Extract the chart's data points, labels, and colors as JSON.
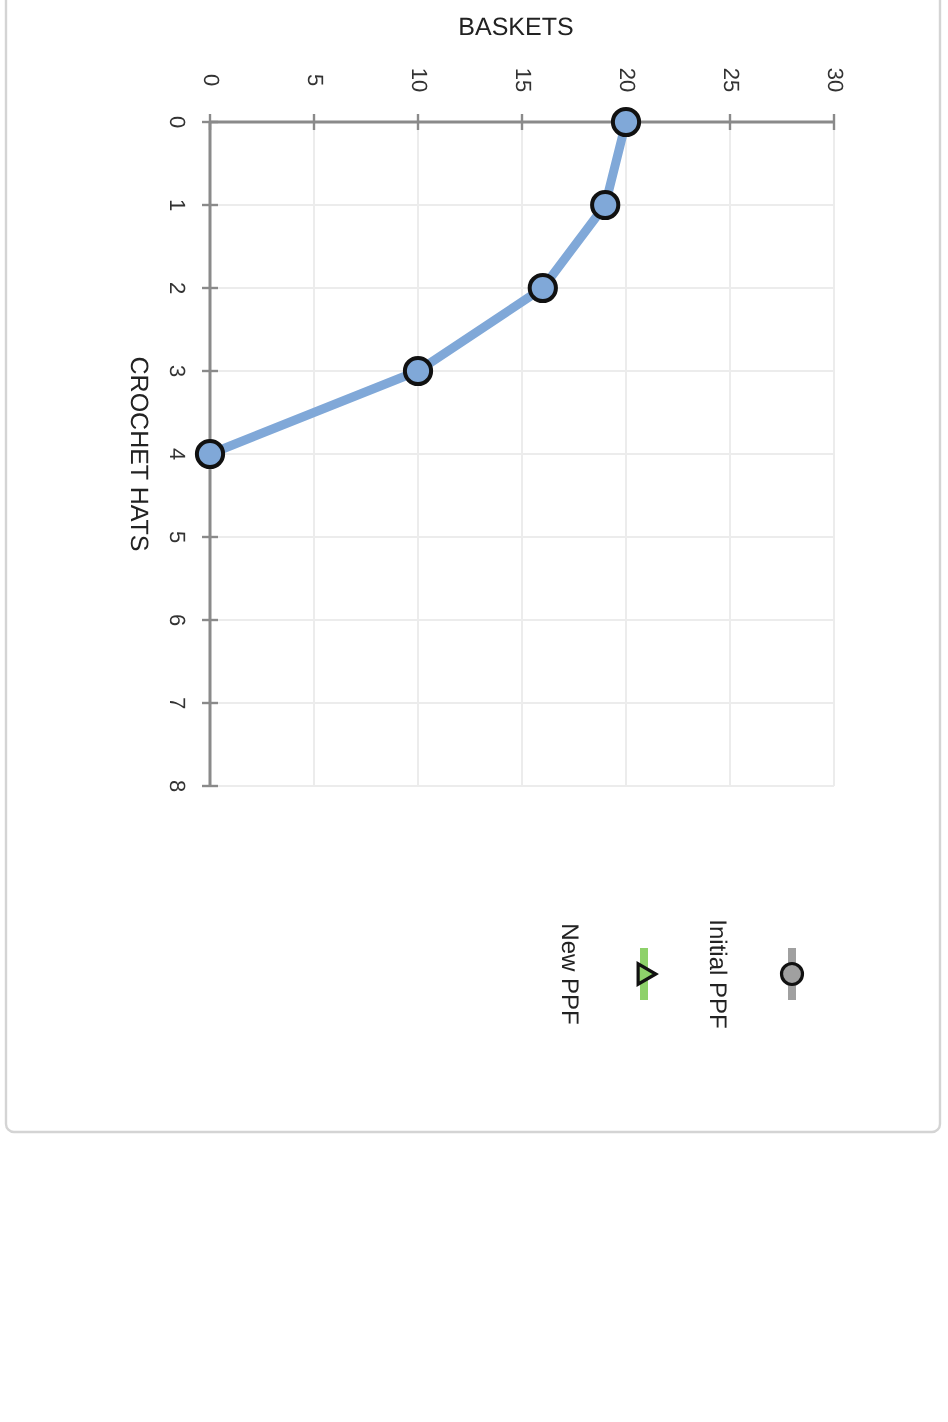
{
  "chart_data": {
    "type": "line",
    "xlabel": "BASKETS",
    "ylabel": "CROCHET HATS",
    "x": [
      20,
      19,
      16,
      10,
      0
    ],
    "series": [
      {
        "color": "#80a8d8",
        "values": [
          0,
          1,
          2,
          3,
          4
        ]
      },
      {
        "name": "Initial PPF",
        "color": "#a0a0a0",
        "values": [
          null,
          null,
          null,
          null,
          null
        ]
      },
      {
        "name": "New PPF",
        "color": "#8ed16a",
        "marker": "triangle",
        "values": [
          null,
          null,
          null,
          null,
          null
        ]
      }
    ],
    "xlim": [
      0,
      30
    ],
    "xticks": [
      0,
      5,
      10,
      15,
      20,
      25,
      30
    ],
    "ylim": [
      8,
      0
    ],
    "yticks": [
      0,
      1,
      2,
      3,
      4,
      5,
      6,
      7,
      8
    ],
    "grid": true,
    "legend": "bottom",
    "marker": "circle",
    "line_style": "solid"
  }
}
